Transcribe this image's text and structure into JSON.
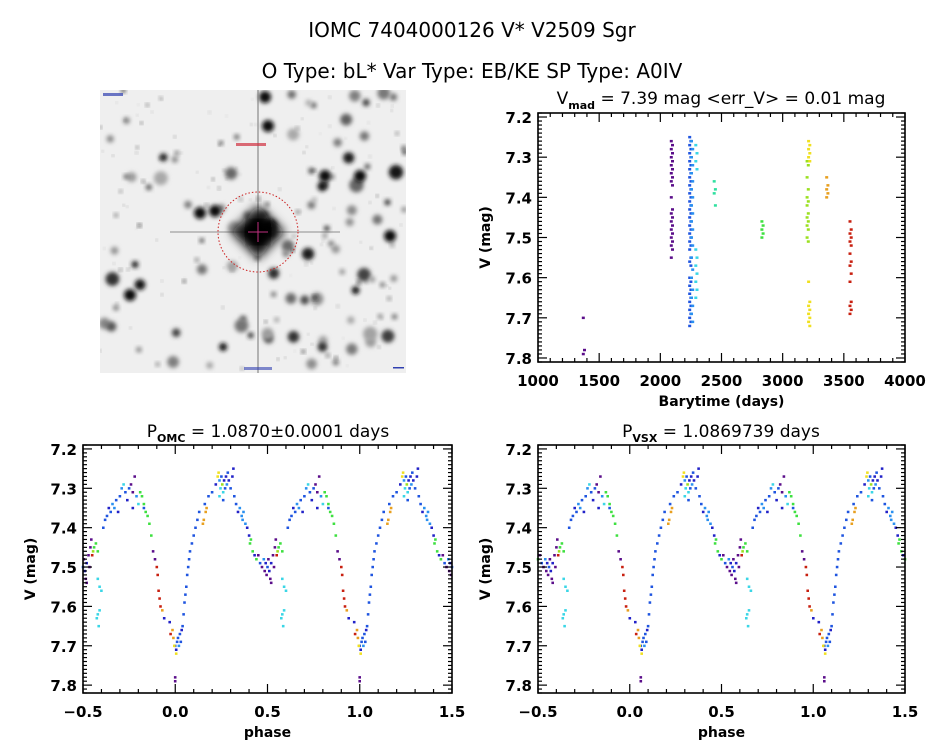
{
  "header": {
    "line1": "IOMC 7404000126    V* V2509 Sgr",
    "line2": "O Type: bL*  Var Type: EB/KE  SP Type: A0IV"
  },
  "palette": [
    "#5b0e8a",
    "#2222c8",
    "#1f55e0",
    "#2a90f0",
    "#3ad6e6",
    "#30e0a0",
    "#3ee040",
    "#9be020",
    "#f0e020",
    "#e8a020",
    "#c82010"
  ],
  "finder_chart": {
    "marker_color": "#cc2020",
    "crosshair_color": "#c03080"
  },
  "chart_data": [
    {
      "type": "scatter",
      "title_main": "V",
      "title_sub": "mad",
      "title_rest": " = 7.39 mag <err_V> = 0.01 mag",
      "xlabel": "Barytime (days)",
      "ylabel": "V (mag)",
      "xlim": [
        1000,
        4000
      ],
      "ylim": [
        7.19,
        7.81
      ],
      "y_inverted": true,
      "xticks": [
        "1000",
        "1500",
        "2000",
        "2500",
        "3000",
        "3500",
        "4000"
      ],
      "yticks": [
        "7.2",
        "7.3",
        "7.4",
        "7.5",
        "7.6",
        "7.7",
        "7.8"
      ],
      "groups": [
        {
          "t": 1370,
          "c": 0,
          "v": [
            7.7,
            7.78,
            7.79
          ]
        },
        {
          "t": 2090,
          "c": 0,
          "v": [
            7.26,
            7.27,
            7.28,
            7.29,
            7.3,
            7.31,
            7.32,
            7.33,
            7.34,
            7.35,
            7.36,
            7.37,
            7.4,
            7.43,
            7.44,
            7.45,
            7.46,
            7.47,
            7.48,
            7.49,
            7.5,
            7.51,
            7.52,
            7.53,
            7.55
          ]
        },
        {
          "t": 2240,
          "c": 2,
          "v": [
            7.25,
            7.26,
            7.27,
            7.28,
            7.29,
            7.3,
            7.31,
            7.32,
            7.33,
            7.34,
            7.35,
            7.36,
            7.37,
            7.38,
            7.39,
            7.4,
            7.41,
            7.42,
            7.43,
            7.44,
            7.45,
            7.46,
            7.47,
            7.48,
            7.49,
            7.5,
            7.51,
            7.52,
            7.53,
            7.55,
            7.56,
            7.57,
            7.6,
            7.61,
            7.62,
            7.63,
            7.64,
            7.65,
            7.66,
            7.67,
            7.68,
            7.69,
            7.7,
            7.71,
            7.72
          ]
        },
        {
          "t": 2255,
          "c": 3,
          "v": [
            7.26,
            7.28,
            7.3,
            7.32,
            7.34,
            7.36,
            7.38,
            7.4,
            7.42,
            7.44,
            7.46,
            7.48,
            7.5,
            7.52,
            7.55,
            7.58,
            7.6,
            7.63,
            7.65,
            7.67,
            7.69,
            7.71
          ]
        },
        {
          "t": 2290,
          "c": 4,
          "v": [
            7.27,
            7.29,
            7.31,
            7.33,
            7.53,
            7.55,
            7.57,
            7.59,
            7.61,
            7.63,
            7.65
          ]
        },
        {
          "t": 2440,
          "c": 5,
          "v": [
            7.36,
            7.38,
            7.39,
            7.42
          ]
        },
        {
          "t": 2830,
          "c": 6,
          "v": [
            7.46,
            7.47,
            7.48,
            7.49,
            7.5
          ]
        },
        {
          "t": 3200,
          "c": 7,
          "v": [
            7.31,
            7.32,
            7.35,
            7.38,
            7.4,
            7.41,
            7.42,
            7.44,
            7.45,
            7.46,
            7.47,
            7.48,
            7.5,
            7.51
          ]
        },
        {
          "t": 3212,
          "c": 8,
          "v": [
            7.26,
            7.27,
            7.28,
            7.29,
            7.3,
            7.31,
            7.61,
            7.66,
            7.67,
            7.68,
            7.69,
            7.7,
            7.71,
            7.72
          ]
        },
        {
          "t": 3360,
          "c": 9,
          "v": [
            7.35,
            7.37,
            7.38,
            7.39,
            7.4
          ]
        },
        {
          "t": 3550,
          "c": 10,
          "v": [
            7.46,
            7.48,
            7.49,
            7.5,
            7.51,
            7.52,
            7.54,
            7.56,
            7.57,
            7.59,
            7.61,
            7.66,
            7.67,
            7.68,
            7.69
          ]
        }
      ]
    },
    {
      "type": "scatter",
      "title_main": "P",
      "title_sub": "OMC",
      "title_rest": " = 1.0870±0.0001 days",
      "xlabel": "phase",
      "ylabel": "V (mag)",
      "xlim": [
        -0.5,
        1.5
      ],
      "ylim": [
        7.19,
        7.82
      ],
      "y_inverted": true,
      "xticks": [
        "−0.5",
        "0.0",
        "0.5",
        "1.0",
        "1.5"
      ],
      "yticks": [
        "7.2",
        "7.3",
        "7.4",
        "7.5",
        "7.6",
        "7.7",
        "7.8"
      ],
      "phase_offset": 0,
      "points": [
        [
          0.0,
          7.7,
          2
        ],
        [
          0.005,
          7.71,
          1
        ],
        [
          0.01,
          7.69,
          2
        ],
        [
          0.015,
          7.68,
          2
        ],
        [
          0.02,
          7.7,
          3
        ],
        [
          0.025,
          7.67,
          2
        ],
        [
          0.03,
          7.69,
          2
        ],
        [
          0.035,
          7.66,
          1
        ],
        [
          0.005,
          7.72,
          8
        ],
        [
          0.0,
          7.78,
          0
        ],
        [
          0.0,
          7.79,
          0
        ],
        [
          0.99,
          7.68,
          9
        ],
        [
          0.985,
          7.66,
          9
        ],
        [
          0.975,
          7.67,
          10
        ],
        [
          0.995,
          7.7,
          8
        ],
        [
          0.97,
          7.64,
          1
        ],
        [
          0.04,
          7.65,
          2
        ],
        [
          0.045,
          7.62,
          2
        ],
        [
          0.05,
          7.59,
          2
        ],
        [
          0.055,
          7.57,
          2
        ],
        [
          0.06,
          7.55,
          2
        ],
        [
          0.065,
          7.52,
          2
        ],
        [
          0.07,
          7.5,
          2
        ],
        [
          0.075,
          7.48,
          2
        ],
        [
          0.08,
          7.46,
          2
        ],
        [
          0.09,
          7.44,
          2
        ],
        [
          0.1,
          7.42,
          2
        ],
        [
          0.11,
          7.4,
          2
        ],
        [
          0.12,
          7.38,
          2
        ],
        [
          0.13,
          7.36,
          2
        ],
        [
          0.15,
          7.39,
          9
        ],
        [
          0.155,
          7.38,
          9
        ],
        [
          0.165,
          7.36,
          9
        ],
        [
          0.17,
          7.35,
          9
        ],
        [
          0.16,
          7.34,
          2
        ],
        [
          0.18,
          7.32,
          2
        ],
        [
          0.2,
          7.31,
          2
        ],
        [
          0.22,
          7.29,
          1
        ],
        [
          0.23,
          7.27,
          8
        ],
        [
          0.235,
          7.26,
          8
        ],
        [
          0.24,
          7.28,
          3
        ],
        [
          0.245,
          7.3,
          4
        ],
        [
          0.25,
          7.27,
          2
        ],
        [
          0.255,
          7.29,
          7
        ],
        [
          0.26,
          7.31,
          4
        ],
        [
          0.265,
          7.28,
          1
        ],
        [
          0.27,
          7.3,
          2
        ],
        [
          0.275,
          7.27,
          1
        ],
        [
          0.28,
          7.29,
          3
        ],
        [
          0.285,
          7.26,
          2
        ],
        [
          0.29,
          7.28,
          1
        ],
        [
          0.3,
          7.3,
          2
        ],
        [
          0.31,
          7.27,
          1
        ],
        [
          0.315,
          7.25,
          1
        ],
        [
          0.32,
          7.32,
          2
        ],
        [
          0.24,
          7.32,
          4
        ],
        [
          0.26,
          7.33,
          2
        ],
        [
          0.33,
          7.34,
          2
        ],
        [
          0.34,
          7.36,
          1
        ],
        [
          0.35,
          7.35,
          3
        ],
        [
          0.36,
          7.37,
          3
        ],
        [
          0.365,
          7.38,
          3
        ],
        [
          0.37,
          7.36,
          3
        ],
        [
          0.38,
          7.39,
          3
        ],
        [
          0.39,
          7.4,
          1
        ],
        [
          0.4,
          7.42,
          1
        ],
        [
          0.405,
          7.44,
          6
        ],
        [
          0.41,
          7.43,
          6
        ],
        [
          0.42,
          7.46,
          6
        ],
        [
          0.43,
          7.47,
          1
        ],
        [
          0.44,
          7.48,
          6
        ],
        [
          0.45,
          7.47,
          0
        ],
        [
          0.46,
          7.49,
          2
        ],
        [
          0.47,
          7.5,
          0
        ],
        [
          0.48,
          7.48,
          3
        ],
        [
          0.485,
          7.51,
          0
        ],
        [
          0.49,
          7.49,
          1
        ],
        [
          0.495,
          7.52,
          0
        ],
        [
          0.5,
          7.5,
          2
        ],
        [
          0.505,
          7.48,
          0
        ],
        [
          0.51,
          7.51,
          1
        ],
        [
          0.515,
          7.53,
          0
        ],
        [
          0.52,
          7.49,
          1
        ],
        [
          0.53,
          7.47,
          0
        ],
        [
          0.535,
          7.5,
          0
        ],
        [
          0.54,
          7.45,
          0
        ],
        [
          0.545,
          7.43,
          0
        ],
        [
          0.55,
          7.47,
          10
        ],
        [
          0.555,
          7.46,
          7
        ],
        [
          0.56,
          7.45,
          6
        ],
        [
          0.57,
          7.44,
          6
        ],
        [
          0.58,
          7.46,
          6
        ],
        [
          0.52,
          7.54,
          0
        ],
        [
          0.58,
          7.53,
          4
        ],
        [
          0.59,
          7.55,
          4
        ],
        [
          0.6,
          7.56,
          4
        ],
        [
          0.58,
          7.62,
          4
        ],
        [
          0.59,
          7.61,
          4
        ],
        [
          0.575,
          7.63,
          4
        ],
        [
          0.585,
          7.65,
          4
        ],
        [
          0.61,
          7.4,
          2
        ],
        [
          0.62,
          7.38,
          2
        ],
        [
          0.63,
          7.37,
          2
        ],
        [
          0.64,
          7.35,
          1
        ],
        [
          0.65,
          7.36,
          2
        ],
        [
          0.66,
          7.34,
          3
        ],
        [
          0.67,
          7.35,
          3
        ],
        [
          0.68,
          7.33,
          2
        ],
        [
          0.69,
          7.36,
          1
        ],
        [
          0.7,
          7.32,
          2
        ],
        [
          0.71,
          7.3,
          3
        ],
        [
          0.72,
          7.29,
          4
        ],
        [
          0.73,
          7.31,
          2
        ],
        [
          0.74,
          7.33,
          1
        ],
        [
          0.75,
          7.3,
          2
        ],
        [
          0.76,
          7.29,
          0
        ],
        [
          0.77,
          7.31,
          0
        ],
        [
          0.78,
          7.27,
          0
        ],
        [
          0.79,
          7.32,
          3
        ],
        [
          0.8,
          7.34,
          4
        ],
        [
          0.77,
          7.35,
          1
        ],
        [
          0.81,
          7.31,
          6
        ],
        [
          0.82,
          7.32,
          6
        ],
        [
          0.83,
          7.34,
          6
        ],
        [
          0.84,
          7.36,
          6
        ],
        [
          0.85,
          7.37,
          6
        ],
        [
          0.86,
          7.39,
          6
        ],
        [
          0.87,
          7.42,
          6
        ],
        [
          0.83,
          7.35,
          2
        ],
        [
          0.88,
          7.46,
          0
        ],
        [
          0.89,
          7.48,
          0
        ],
        [
          0.9,
          7.5,
          10
        ],
        [
          0.905,
          7.52,
          10
        ],
        [
          0.91,
          7.56,
          10
        ],
        [
          0.915,
          7.58,
          10
        ],
        [
          0.92,
          7.6,
          10
        ],
        [
          0.93,
          7.61,
          9
        ],
        [
          0.94,
          7.63,
          1
        ]
      ]
    },
    {
      "type": "scatter",
      "title_main": "P",
      "title_sub": "VSX",
      "title_rest": " = 1.0869739 days",
      "xlabel": "phase",
      "ylabel": "V (mag)",
      "xlim": [
        -0.5,
        1.5
      ],
      "ylim": [
        7.19,
        7.82
      ],
      "y_inverted": true,
      "xticks": [
        "−0.5",
        "0.0",
        "0.5",
        "1.0",
        "1.5"
      ],
      "yticks": [
        "7.2",
        "7.3",
        "7.4",
        "7.5",
        "7.6",
        "7.7",
        "7.8"
      ],
      "phase_offset": 0.06
    }
  ]
}
